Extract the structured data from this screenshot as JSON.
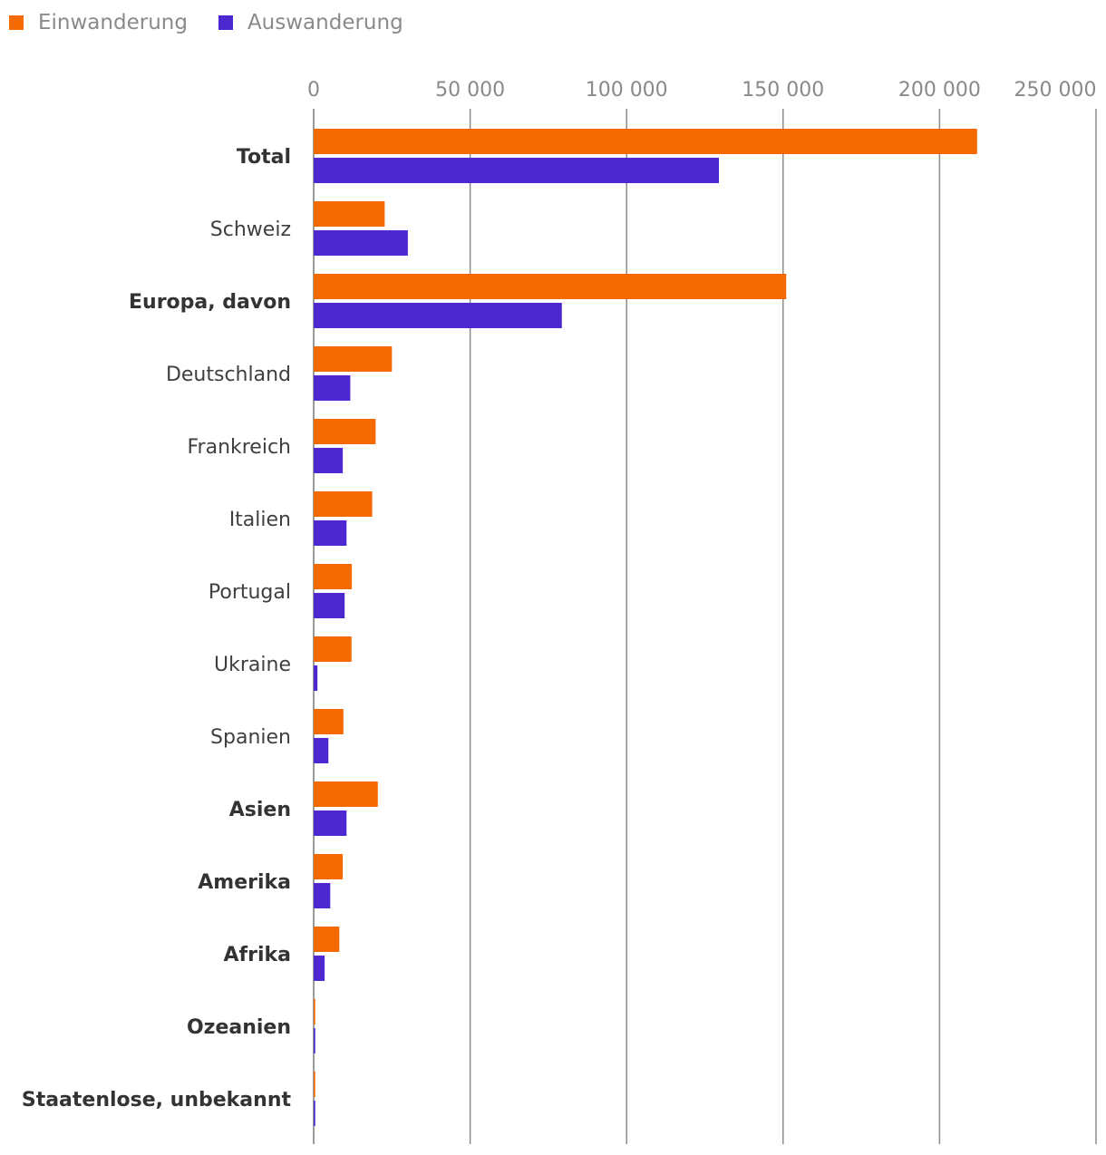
{
  "chart_data": {
    "type": "bar",
    "orientation": "horizontal",
    "title": "",
    "xlabel": "",
    "ylabel": "",
    "xlim": [
      0,
      250000
    ],
    "ticks": [
      0,
      50000,
      100000,
      150000,
      200000,
      250000
    ],
    "tick_labels": [
      "0",
      "50 000",
      "100 000",
      "150 000",
      "200 000",
      "250 000"
    ],
    "grid": true,
    "legend_position": "top-left",
    "categories": [
      {
        "label": "Total",
        "bold": true
      },
      {
        "label": "Schweiz",
        "bold": false
      },
      {
        "label": "Europa, davon",
        "bold": true
      },
      {
        "label": "Deutschland",
        "bold": false
      },
      {
        "label": "Frankreich",
        "bold": false
      },
      {
        "label": "Italien",
        "bold": false
      },
      {
        "label": "Portugal",
        "bold": false
      },
      {
        "label": "Ukraine",
        "bold": false
      },
      {
        "label": "Spanien",
        "bold": false
      },
      {
        "label": "Asien",
        "bold": true
      },
      {
        "label": "Amerika",
        "bold": true
      },
      {
        "label": "Afrika",
        "bold": true
      },
      {
        "label": "Ozeanien",
        "bold": true
      },
      {
        "label": "Staatenlose, unbekannt",
        "bold": true
      }
    ],
    "series": [
      {
        "name": "Einwanderung",
        "color": "#f56a00",
        "values": [
          212000,
          22700,
          151000,
          25000,
          19800,
          18700,
          12200,
          12100,
          9500,
          20500,
          9300,
          8200,
          500,
          500
        ]
      },
      {
        "name": "Auswanderung",
        "color": "#4b28d0",
        "values": [
          129500,
          30100,
          79300,
          11700,
          9300,
          10500,
          9900,
          1200,
          4700,
          10500,
          5300,
          3500,
          500,
          500
        ]
      }
    ]
  }
}
